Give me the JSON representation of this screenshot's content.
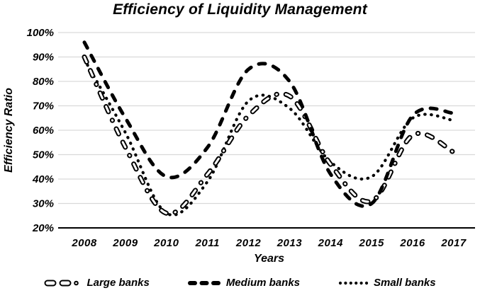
{
  "title": "Efficiency of Liquidity Management",
  "chart_data": {
    "type": "line",
    "title": "Efficiency of Liquidity Management",
    "xlabel": "Years",
    "ylabel": "Efficiency Ratio",
    "categories": [
      "2008",
      "2009",
      "2010",
      "2011",
      "2012",
      "2013",
      "2014",
      "2015",
      "2016",
      "2017"
    ],
    "series": [
      {
        "name": "Large banks",
        "line_style": "hollow-dash-dot",
        "values": [
          90,
          53,
          26,
          42,
          66,
          74,
          46,
          31,
          58,
          51
        ]
      },
      {
        "name": "Medium banks",
        "line_style": "thick-dash",
        "values": [
          96,
          65,
          41,
          53,
          85,
          80,
          42,
          30,
          66,
          67
        ]
      },
      {
        "name": "Small banks",
        "line_style": "dotted",
        "values": [
          89,
          59,
          26,
          39,
          72,
          69,
          47,
          41,
          65,
          64
        ]
      }
    ],
    "unit": "%",
    "ylim": [
      20,
      100
    ],
    "ytick_step": 10,
    "ytick_labels": [
      "100%",
      "90%",
      "80%",
      "70%",
      "60%",
      "50%",
      "40%",
      "30%",
      "20%"
    ],
    "grid": "horizontal",
    "legend_position": "bottom",
    "colors": {
      "line": "#000000",
      "grid": "#d9d9d9",
      "background": "#ffffff",
      "text": "#000000"
    }
  }
}
